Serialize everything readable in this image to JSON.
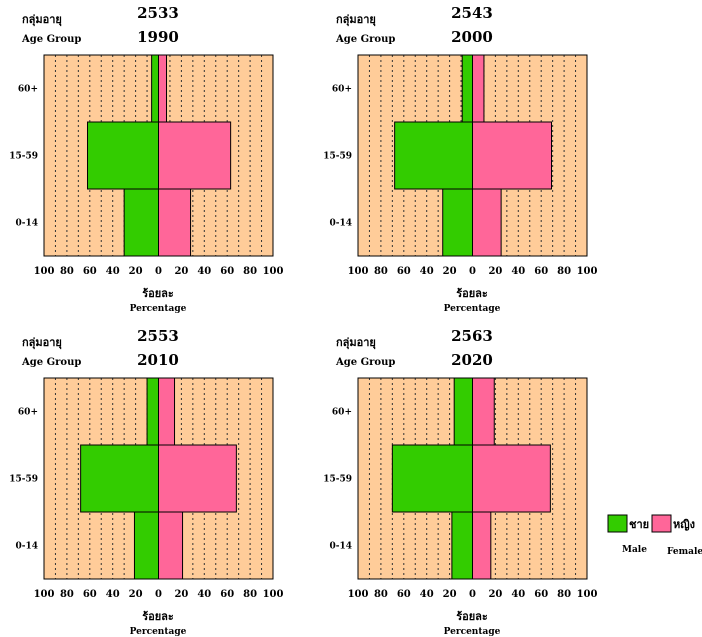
{
  "colors": {
    "background": "#FFCC99",
    "male": "#33CC00",
    "female": "#FF6699",
    "gridline": "#333333"
  },
  "legend": {
    "male_th": "ชาย",
    "female_th": "หญิง",
    "male_en": "Male",
    "female_en": "Female"
  },
  "chart_data": [
    {
      "type": "bar",
      "orientation": "horizontal-population-pyramid",
      "year_th": "2533",
      "year_en": "1990",
      "ylabel_th": "กลุ่มอายุ",
      "ylabel_en": "Age Group",
      "xlabel_th": "ร้อยละ",
      "xlabel_en": "Percentage",
      "categories": [
        "60+",
        "15-59",
        "0-14"
      ],
      "xlim": [
        -100,
        100
      ],
      "xticks": [
        "100",
        "80",
        "60",
        "40",
        "20",
        "0",
        "20",
        "40",
        "60",
        "80",
        "100"
      ],
      "grid": true,
      "series": [
        {
          "name": "ชาย",
          "values": [
            6,
            62,
            30
          ]
        },
        {
          "name": "หญิง",
          "values": [
            7,
            63,
            28
          ]
        }
      ]
    },
    {
      "type": "bar",
      "orientation": "horizontal-population-pyramid",
      "year_th": "2543",
      "year_en": "2000",
      "ylabel_th": "กลุ่มอายุ",
      "ylabel_en": "Age Group",
      "xlabel_th": "ร้อยละ",
      "xlabel_en": "Percentage",
      "categories": [
        "60+",
        "15-59",
        "0-14"
      ],
      "xlim": [
        -100,
        100
      ],
      "xticks": [
        "100",
        "80",
        "60",
        "40",
        "20",
        "0",
        "20",
        "40",
        "60",
        "80",
        "100"
      ],
      "grid": true,
      "series": [
        {
          "name": "ชาย",
          "values": [
            9,
            68,
            26
          ]
        },
        {
          "name": "หญิง",
          "values": [
            10,
            69,
            25
          ]
        }
      ]
    },
    {
      "type": "bar",
      "orientation": "horizontal-population-pyramid",
      "year_th": "2553",
      "year_en": "2010",
      "ylabel_th": "กลุ่มอายุ",
      "ylabel_en": "Age Group",
      "xlabel_th": "ร้อยละ",
      "xlabel_en": "Percentage",
      "categories": [
        "60+",
        "15-59",
        "0-14"
      ],
      "xlim": [
        -100,
        100
      ],
      "xticks": [
        "100",
        "80",
        "60",
        "40",
        "20",
        "0",
        "20",
        "40",
        "60",
        "80",
        "100"
      ],
      "grid": true,
      "series": [
        {
          "name": "ชาย",
          "values": [
            10,
            68,
            21
          ]
        },
        {
          "name": "หญิง",
          "values": [
            14,
            68,
            21
          ]
        }
      ]
    },
    {
      "type": "bar",
      "orientation": "horizontal-population-pyramid",
      "year_th": "2563",
      "year_en": "2020",
      "ylabel_th": "กลุ่มอายุ",
      "ylabel_en": "Age Group",
      "xlabel_th": "ร้อยละ",
      "xlabel_en": "Percentage",
      "categories": [
        "60+",
        "15-59",
        "0-14"
      ],
      "xlim": [
        -100,
        100
      ],
      "xticks": [
        "100",
        "80",
        "60",
        "40",
        "20",
        "0",
        "20",
        "40",
        "60",
        "80",
        "100"
      ],
      "grid": true,
      "series": [
        {
          "name": "ชาย",
          "values": [
            16,
            70,
            18
          ]
        },
        {
          "name": "หญิง",
          "values": [
            19,
            68,
            16
          ]
        }
      ]
    }
  ]
}
